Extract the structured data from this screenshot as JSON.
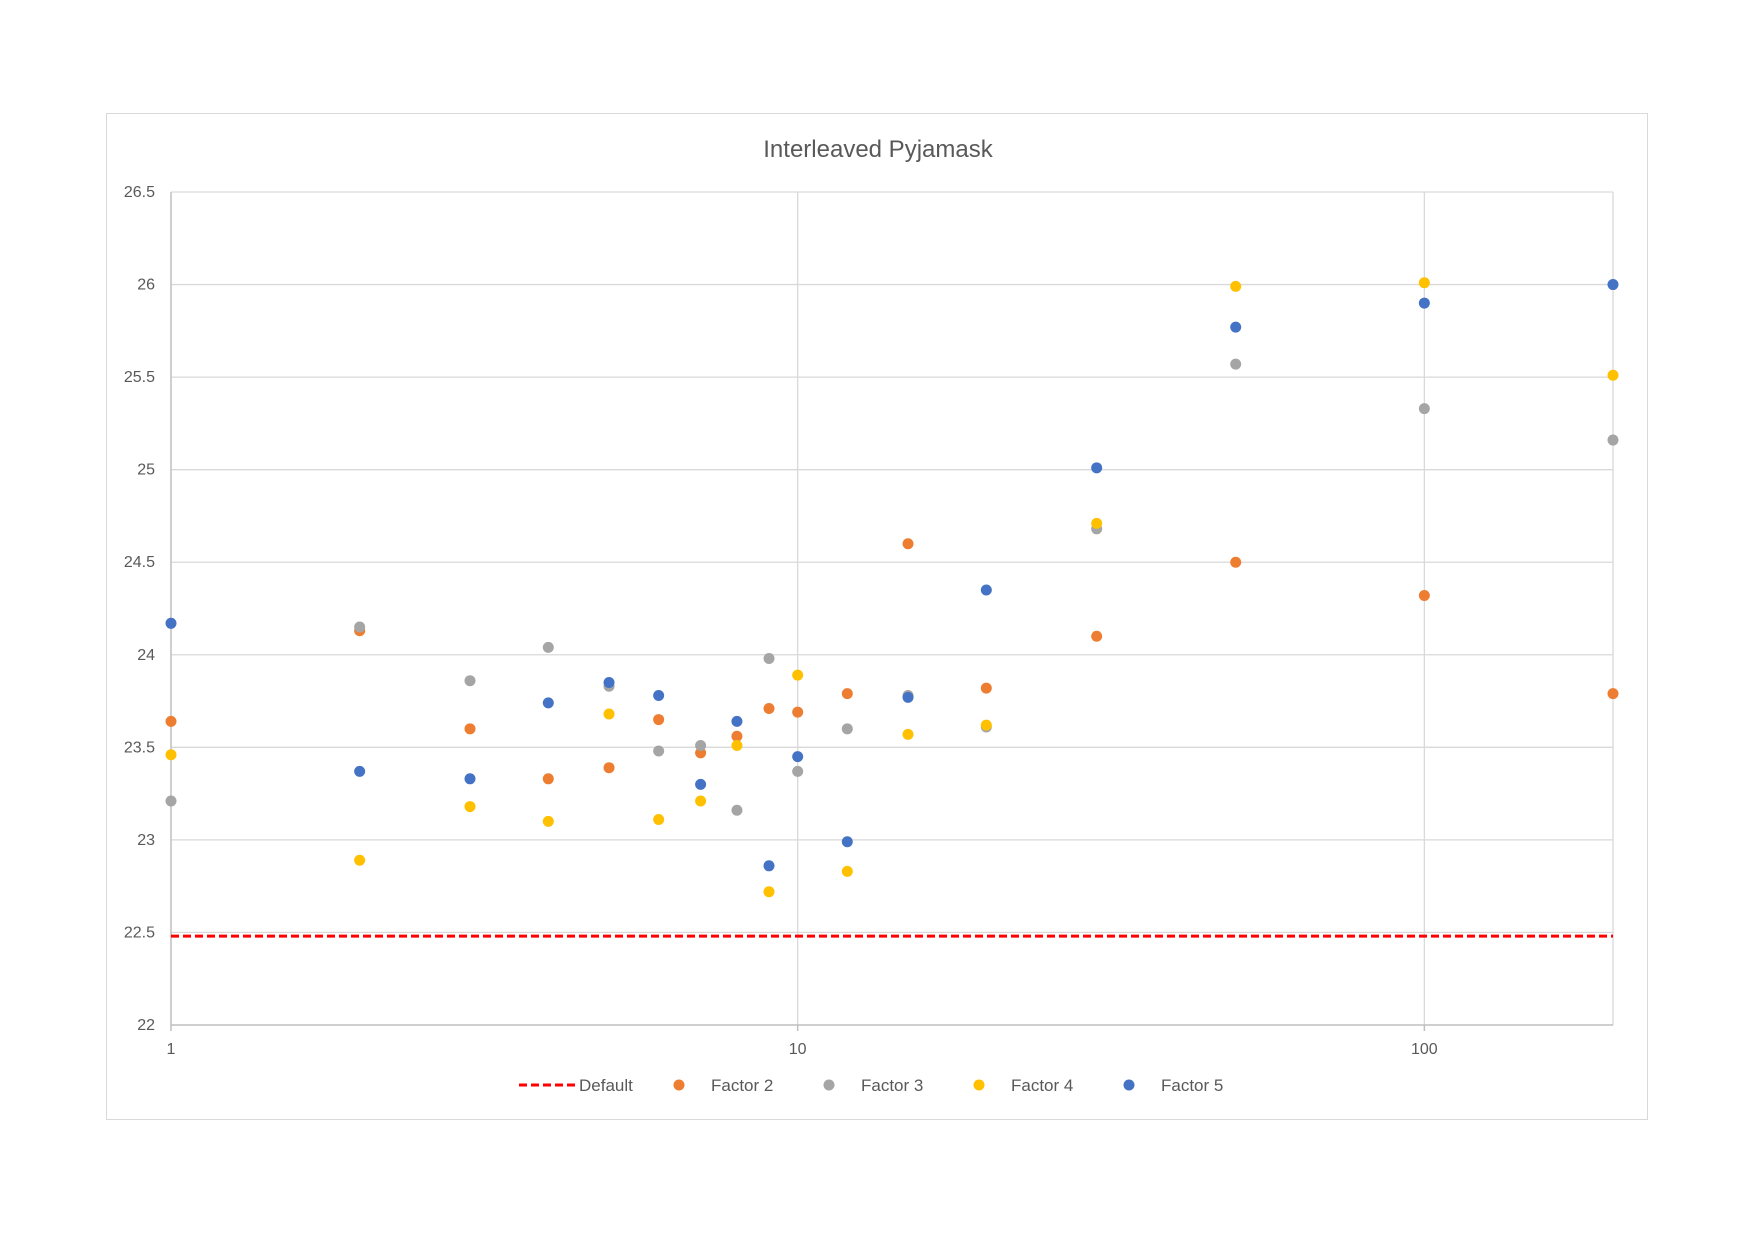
{
  "chart_data": {
    "type": "scatter",
    "title": "Interleaved Pyjamask",
    "xlabel": "",
    "ylabel": "",
    "x_scale": "log",
    "xlim": [
      1,
      200
    ],
    "ylim": [
      22,
      26.5
    ],
    "x_ticks": [
      1,
      10,
      100
    ],
    "x_tick_labels": [
      "1",
      "10",
      "100"
    ],
    "y_ticks": [
      22,
      22.5,
      23,
      23.5,
      24,
      24.5,
      25,
      25.5,
      26,
      26.5
    ],
    "y_tick_labels": [
      "22",
      "22.5",
      "23",
      "23.5",
      "24",
      "24.5",
      "25",
      "25.5",
      "26",
      "26.5"
    ],
    "grid": true,
    "legend_position": "bottom",
    "reference_lines": [
      {
        "name": "Default",
        "y": 22.48,
        "color": "#ff0000",
        "style": "dashed"
      }
    ],
    "series": [
      {
        "name": "Factor 2",
        "color": "#ed7d31",
        "x": [
          1,
          2,
          3,
          4,
          5,
          6,
          7,
          8,
          9,
          10,
          12,
          15,
          20,
          30,
          50,
          100,
          200
        ],
        "y": [
          23.64,
          24.13,
          23.6,
          23.33,
          23.39,
          23.65,
          23.47,
          23.56,
          23.71,
          23.69,
          23.79,
          24.6,
          23.82,
          24.1,
          24.5,
          24.32,
          23.79
        ]
      },
      {
        "name": "Factor 3",
        "color": "#a5a5a5",
        "x": [
          1,
          2,
          3,
          4,
          5,
          6,
          7,
          8,
          9,
          10,
          12,
          15,
          20,
          30,
          50,
          100,
          200
        ],
        "y": [
          23.21,
          24.15,
          23.86,
          24.04,
          23.83,
          23.48,
          23.51,
          23.16,
          23.98,
          23.37,
          23.6,
          23.78,
          23.61,
          24.68,
          25.57,
          25.33,
          25.16
        ]
      },
      {
        "name": "Factor 4",
        "color": "#ffc000",
        "x": [
          1,
          2,
          3,
          4,
          5,
          6,
          7,
          8,
          9,
          10,
          12,
          15,
          20,
          30,
          50,
          100,
          200
        ],
        "y": [
          23.46,
          22.89,
          23.18,
          23.1,
          23.68,
          23.11,
          23.21,
          23.51,
          22.72,
          23.89,
          22.83,
          23.57,
          23.62,
          24.71,
          25.99,
          26.01,
          25.51
        ]
      },
      {
        "name": "Factor 5",
        "color": "#4472c4",
        "x": [
          1,
          2,
          3,
          4,
          5,
          6,
          7,
          8,
          9,
          10,
          12,
          15,
          20,
          30,
          50,
          100,
          200
        ],
        "y": [
          24.17,
          23.37,
          23.33,
          23.74,
          23.85,
          23.78,
          23.3,
          23.64,
          22.86,
          23.45,
          22.99,
          23.77,
          24.35,
          25.01,
          25.77,
          25.9,
          26.0
        ]
      }
    ]
  }
}
